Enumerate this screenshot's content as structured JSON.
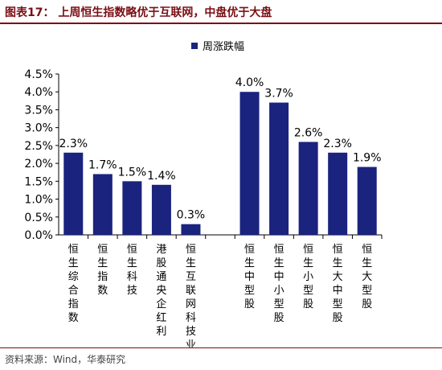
{
  "header": {
    "title": "图表17：  上周恒生指数略优于互联网，中盘优于大盘"
  },
  "footer": {
    "source": "资料来源：Wind，华泰研究"
  },
  "colors": {
    "bar": "#1a237e",
    "title": "#7a0e14"
  },
  "chart_data": {
    "type": "bar",
    "title": "",
    "xlabel": "",
    "ylabel": "",
    "ylim": [
      0,
      4.5
    ],
    "yticks": [
      "0.0%",
      "0.5%",
      "1.0%",
      "1.5%",
      "2.0%",
      "2.5%",
      "3.0%",
      "3.5%",
      "4.0%",
      "4.5%"
    ],
    "grid": false,
    "legend": "top-right",
    "series": [
      {
        "name": "周涨跌幅",
        "values": [
          2.3,
          1.7,
          1.5,
          1.4,
          0.3,
          null,
          4.0,
          3.7,
          2.6,
          2.3,
          1.9
        ],
        "labels": [
          "2.3%",
          "1.7%",
          "1.5%",
          "1.4%",
          "0.3%",
          "",
          "4.0%",
          "3.7%",
          "2.6%",
          "2.3%",
          "1.9%"
        ]
      }
    ],
    "categories": [
      "恒生综合指数",
      "恒生指数",
      "恒生科技",
      "港股通央企红利",
      "恒生互联网科技业",
      "",
      "恒生中型股",
      "恒生中小型股",
      "恒生小型股",
      "恒生大中型股",
      "恒生大型股"
    ]
  }
}
